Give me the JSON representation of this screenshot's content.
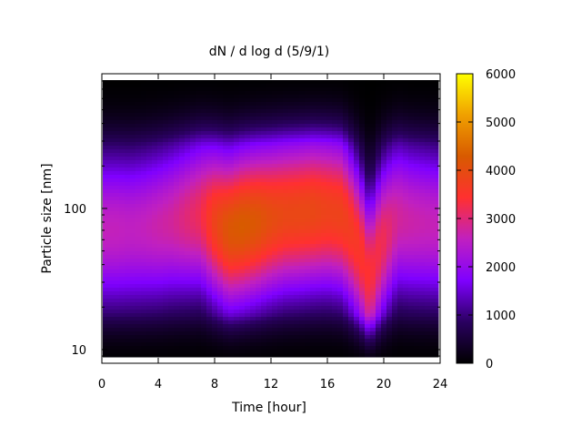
{
  "chart_data": {
    "type": "heatmap",
    "title": "dN / d log d (5/9/1)",
    "xlabel": "Time [hour]",
    "ylabel": "Particle size [nm]",
    "xlim": [
      0,
      24
    ],
    "ylim": [
      8,
      900
    ],
    "y_scale": "log",
    "x_ticks": [
      0,
      4,
      8,
      12,
      16,
      20,
      24
    ],
    "x_tick_labels": [
      "0",
      "4",
      "8",
      "12",
      "16",
      "20",
      "24"
    ],
    "y_ticks": [
      10,
      100
    ],
    "y_tick_labels": [
      "10",
      "100"
    ],
    "colorbar": {
      "min": 0,
      "max": 6000,
      "ticks": [
        0,
        1000,
        2000,
        3000,
        4000,
        5000,
        6000
      ],
      "tick_labels": [
        "0",
        "1000",
        "2000",
        "3000",
        "4000",
        "5000",
        "6000"
      ],
      "palette": [
        "#000000",
        "#2a0060",
        "#7f00ff",
        "#c020c0",
        "#ff3030",
        "#d85a00",
        "#f0a000",
        "#ffff00"
      ]
    },
    "grid": false,
    "legend": "colorbar-right",
    "data_description": "particle size distribution vs time; mode ~100 nm, highest 8-20 h (~3500-4500), secondary event near 19 h at ~20 nm",
    "mode_diameter_nm": [
      70,
      70,
      70,
      72,
      75,
      80,
      85,
      90,
      80,
      70,
      75,
      80,
      85,
      90,
      92,
      95,
      95,
      90,
      60,
      30,
      60,
      85,
      80,
      78,
      75
    ],
    "peak_concentration": [
      2600,
      2600,
      2550,
      2600,
      2700,
      2800,
      3000,
      3200,
      3800,
      4200,
      4300,
      4200,
      4000,
      3900,
      3900,
      3900,
      3800,
      3800,
      3600,
      3400,
      3200,
      2800,
      2700,
      2650,
      2600
    ],
    "hours": [
      0,
      1,
      2,
      3,
      4,
      5,
      6,
      7,
      8,
      9,
      10,
      11,
      12,
      13,
      14,
      15,
      16,
      17,
      18,
      19,
      20,
      21,
      22,
      23,
      24
    ]
  }
}
